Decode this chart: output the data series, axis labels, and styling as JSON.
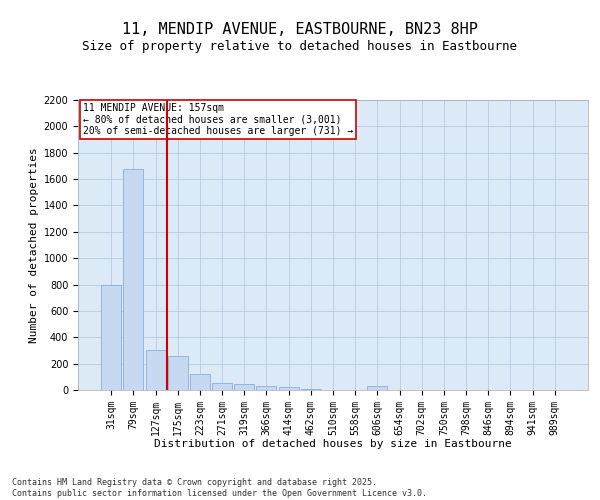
{
  "title_line1": "11, MENDIP AVENUE, EASTBOURNE, BN23 8HP",
  "title_line2": "Size of property relative to detached houses in Eastbourne",
  "xlabel": "Distribution of detached houses by size in Eastbourne",
  "ylabel": "Number of detached properties",
  "categories": [
    "31sqm",
    "79sqm",
    "127sqm",
    "175sqm",
    "223sqm",
    "271sqm",
    "319sqm",
    "366sqm",
    "414sqm",
    "462sqm",
    "510sqm",
    "558sqm",
    "606sqm",
    "654sqm",
    "702sqm",
    "750sqm",
    "798sqm",
    "846sqm",
    "894sqm",
    "941sqm",
    "989sqm"
  ],
  "values": [
    800,
    1675,
    300,
    260,
    120,
    50,
    45,
    30,
    20,
    5,
    0,
    0,
    30,
    0,
    0,
    0,
    0,
    0,
    0,
    0,
    0
  ],
  "bar_color": "#c6d9f1",
  "bar_edge_color": "#7ea6d3",
  "vline_x": 2.5,
  "vline_color": "#cc0000",
  "annotation_text": "11 MENDIP AVENUE: 157sqm\n← 80% of detached houses are smaller (3,001)\n20% of semi-detached houses are larger (731) →",
  "annotation_box_color": "#ffffff",
  "annotation_box_edge": "#cc0000",
  "ylim": [
    0,
    2200
  ],
  "yticks": [
    0,
    200,
    400,
    600,
    800,
    1000,
    1200,
    1400,
    1600,
    1800,
    2000,
    2200
  ],
  "grid_color": "#b0c4de",
  "bg_color": "#dce9f7",
  "footer_line1": "Contains HM Land Registry data © Crown copyright and database right 2025.",
  "footer_line2": "Contains public sector information licensed under the Open Government Licence v3.0.",
  "title_fontsize": 11,
  "subtitle_fontsize": 9,
  "axis_fontsize": 8,
  "tick_fontsize": 7,
  "footer_fontsize": 6
}
